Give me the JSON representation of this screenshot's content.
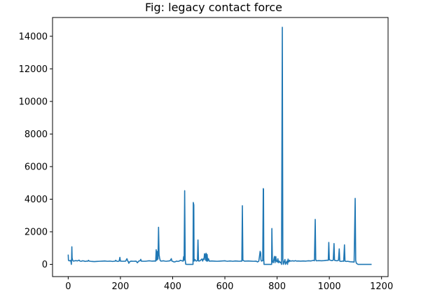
{
  "chart_data": {
    "type": "line",
    "title": "Fig: legacy contact force",
    "xlabel": "",
    "ylabel": "",
    "xlim": [
      -60,
      1225
    ],
    "ylim": [
      -750,
      15150
    ],
    "x_ticks": [
      0,
      200,
      400,
      600,
      800,
      1000,
      1200
    ],
    "y_ticks": [
      0,
      2000,
      4000,
      6000,
      8000,
      10000,
      12000,
      14000
    ],
    "grid": false,
    "legend": "none",
    "series": [
      {
        "color": "#1f77b4",
        "points": [
          [
            0,
            600
          ],
          [
            1,
            250
          ],
          [
            3,
            220
          ],
          [
            5,
            230
          ],
          [
            8,
            210
          ],
          [
            10,
            250
          ],
          [
            12,
            0
          ],
          [
            13,
            300
          ],
          [
            14,
            1080
          ],
          [
            15,
            400
          ],
          [
            17,
            250
          ],
          [
            20,
            200
          ],
          [
            25,
            220
          ],
          [
            30,
            230
          ],
          [
            35,
            210
          ],
          [
            40,
            250
          ],
          [
            42,
            260
          ],
          [
            45,
            200
          ],
          [
            50,
            190
          ],
          [
            55,
            220
          ],
          [
            60,
            210
          ],
          [
            65,
            180
          ],
          [
            70,
            200
          ],
          [
            75,
            200
          ],
          [
            78,
            250
          ],
          [
            80,
            200
          ],
          [
            90,
            180
          ],
          [
            100,
            170
          ],
          [
            110,
            180
          ],
          [
            120,
            190
          ],
          [
            130,
            200
          ],
          [
            140,
            210
          ],
          [
            150,
            190
          ],
          [
            160,
            200
          ],
          [
            170,
            180
          ],
          [
            180,
            200
          ],
          [
            182,
            250
          ],
          [
            185,
            200
          ],
          [
            190,
            180
          ],
          [
            195,
            200
          ],
          [
            198,
            430
          ],
          [
            200,
            200
          ],
          [
            210,
            190
          ],
          [
            220,
            200
          ],
          [
            225,
            350
          ],
          [
            228,
            200
          ],
          [
            230,
            180
          ],
          [
            232,
            70
          ],
          [
            235,
            150
          ],
          [
            240,
            200
          ],
          [
            250,
            190
          ],
          [
            260,
            200
          ],
          [
            265,
            100
          ],
          [
            270,
            200
          ],
          [
            275,
            220
          ],
          [
            278,
            310
          ],
          [
            280,
            200
          ],
          [
            290,
            190
          ],
          [
            300,
            200
          ],
          [
            310,
            220
          ],
          [
            320,
            200
          ],
          [
            330,
            210
          ],
          [
            335,
            200
          ],
          [
            337,
            900
          ],
          [
            339,
            250
          ],
          [
            340,
            800
          ],
          [
            342,
            300
          ],
          [
            344,
            350
          ],
          [
            346,
            2280
          ],
          [
            348,
            600
          ],
          [
            350,
            400
          ],
          [
            352,
            250
          ],
          [
            355,
            200
          ],
          [
            360,
            210
          ],
          [
            365,
            220
          ],
          [
            370,
            200
          ],
          [
            375,
            190
          ],
          [
            380,
            200
          ],
          [
            385,
            210
          ],
          [
            390,
            220
          ],
          [
            395,
            350
          ],
          [
            397,
            200
          ],
          [
            400,
            190
          ],
          [
            405,
            150
          ],
          [
            410,
            160
          ],
          [
            415,
            200
          ],
          [
            420,
            180
          ],
          [
            425,
            200
          ],
          [
            430,
            250
          ],
          [
            435,
            220
          ],
          [
            440,
            200
          ],
          [
            442,
            470
          ],
          [
            444,
            250
          ],
          [
            446,
            4520
          ],
          [
            448,
            300
          ],
          [
            450,
            10
          ],
          [
            455,
            0
          ],
          [
            460,
            0
          ],
          [
            465,
            0
          ],
          [
            470,
            0
          ],
          [
            478,
            0
          ],
          [
            479,
            3800
          ],
          [
            481,
            3650
          ],
          [
            482,
            200
          ],
          [
            485,
            300
          ],
          [
            490,
            200
          ],
          [
            495,
            230
          ],
          [
            497,
            1500
          ],
          [
            499,
            250
          ],
          [
            500,
            200
          ],
          [
            505,
            220
          ],
          [
            510,
            300
          ],
          [
            512,
            330
          ],
          [
            515,
            200
          ],
          [
            518,
            350
          ],
          [
            520,
            300
          ],
          [
            522,
            650
          ],
          [
            524,
            600
          ],
          [
            526,
            250
          ],
          [
            528,
            680
          ],
          [
            530,
            200
          ],
          [
            532,
            610
          ],
          [
            534,
            200
          ],
          [
            537,
            350
          ],
          [
            540,
            200
          ],
          [
            550,
            210
          ],
          [
            560,
            200
          ],
          [
            570,
            190
          ],
          [
            580,
            200
          ],
          [
            590,
            210
          ],
          [
            600,
            220
          ],
          [
            605,
            200
          ],
          [
            610,
            190
          ],
          [
            615,
            200
          ],
          [
            620,
            210
          ],
          [
            625,
            200
          ],
          [
            630,
            190
          ],
          [
            640,
            210
          ],
          [
            650,
            200
          ],
          [
            655,
            190
          ],
          [
            660,
            200
          ],
          [
            665,
            200
          ],
          [
            667,
            3600
          ],
          [
            669,
            250
          ],
          [
            675,
            200
          ],
          [
            690,
            210
          ],
          [
            700,
            200
          ],
          [
            710,
            190
          ],
          [
            720,
            200
          ],
          [
            725,
            150
          ],
          [
            730,
            200
          ],
          [
            733,
            550
          ],
          [
            735,
            800
          ],
          [
            737,
            700
          ],
          [
            738,
            300
          ],
          [
            740,
            200
          ],
          [
            745,
            230
          ],
          [
            747,
            4650
          ],
          [
            748,
            4620
          ],
          [
            749,
            300
          ],
          [
            750,
            0
          ],
          [
            760,
            0
          ],
          [
            770,
            0
          ],
          [
            779,
            0
          ],
          [
            780,
            2200
          ],
          [
            782,
            200
          ],
          [
            785,
            100
          ],
          [
            790,
            490
          ],
          [
            792,
            100
          ],
          [
            795,
            480
          ],
          [
            797,
            200
          ],
          [
            800,
            150
          ],
          [
            803,
            350
          ],
          [
            805,
            100
          ],
          [
            808,
            200
          ],
          [
            810,
            150
          ],
          [
            812,
            100
          ],
          [
            815,
            150
          ],
          [
            817,
            0
          ],
          [
            820,
            14550
          ],
          [
            822,
            300
          ],
          [
            824,
            0
          ],
          [
            826,
            100
          ],
          [
            830,
            300
          ],
          [
            832,
            0
          ],
          [
            835,
            100
          ],
          [
            838,
            200
          ],
          [
            840,
            0
          ],
          [
            842,
            320
          ],
          [
            845,
            150
          ],
          [
            848,
            250
          ],
          [
            850,
            200
          ],
          [
            855,
            210
          ],
          [
            860,
            220
          ],
          [
            865,
            200
          ],
          [
            870,
            230
          ],
          [
            875,
            200
          ],
          [
            880,
            210
          ],
          [
            890,
            200
          ],
          [
            900,
            210
          ],
          [
            910,
            200
          ],
          [
            920,
            220
          ],
          [
            930,
            210
          ],
          [
            940,
            250
          ],
          [
            943,
            220
          ],
          [
            946,
            2760
          ],
          [
            948,
            300
          ],
          [
            950,
            220
          ],
          [
            960,
            230
          ],
          [
            970,
            220
          ],
          [
            980,
            230
          ],
          [
            990,
            250
          ],
          [
            996,
            250
          ],
          [
            998,
            1350
          ],
          [
            1000,
            280
          ],
          [
            1005,
            250
          ],
          [
            1010,
            230
          ],
          [
            1015,
            260
          ],
          [
            1018,
            1280
          ],
          [
            1020,
            250
          ],
          [
            1025,
            230
          ],
          [
            1030,
            220
          ],
          [
            1035,
            250
          ],
          [
            1038,
            950
          ],
          [
            1040,
            200
          ],
          [
            1045,
            180
          ],
          [
            1050,
            200
          ],
          [
            1055,
            190
          ],
          [
            1058,
            1200
          ],
          [
            1060,
            200
          ],
          [
            1065,
            180
          ],
          [
            1070,
            190
          ],
          [
            1080,
            160
          ],
          [
            1090,
            150
          ],
          [
            1095,
            140
          ],
          [
            1099,
            4050
          ],
          [
            1101,
            250
          ],
          [
            1103,
            100
          ],
          [
            1105,
            50
          ],
          [
            1110,
            0
          ],
          [
            1120,
            0
          ],
          [
            1130,
            0
          ],
          [
            1140,
            0
          ],
          [
            1150,
            0
          ],
          [
            1160,
            0
          ],
          [
            1162,
            0
          ]
        ]
      }
    ]
  }
}
